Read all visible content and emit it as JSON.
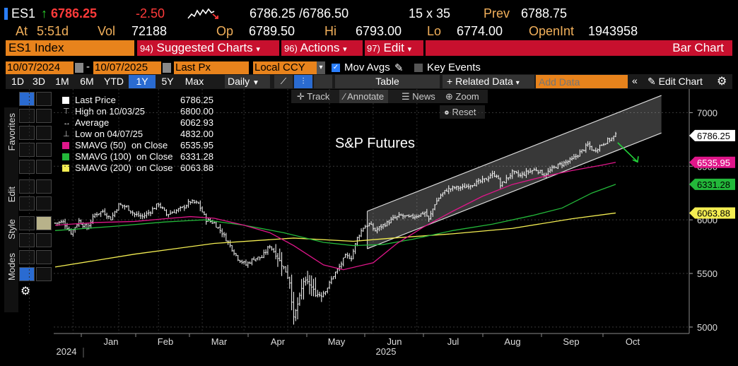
{
  "quote": {
    "ticker": "ES1",
    "arrow": "↑",
    "last": "6786.25",
    "change": "-2.50",
    "bidask": "6786.25 /6786.50",
    "size": "15 x 35",
    "prev_label": "Prev",
    "prev": "6788.75",
    "at_label": "At",
    "at": "5:51d",
    "vol_label": "Vol",
    "vol": "72188",
    "op_label": "Op",
    "op": "6789.50",
    "hi_label": "Hi",
    "hi": "6793.00",
    "lo_label": "Lo",
    "lo": "6774.00",
    "oi_label": "OpenInt",
    "oi": "1943958"
  },
  "menubar": {
    "security": "ES1 Index",
    "suggested_num": "94)",
    "suggested": "Suggested Charts",
    "actions_num": "96)",
    "actions": "Actions",
    "edit_num": "97)",
    "edit": "Edit",
    "chart_type": "Bar Chart"
  },
  "settings": {
    "start_date": "10/07/2024",
    "end_date": "10/07/2025",
    "field": "Last Px",
    "currency": "Local CCY",
    "mov_avgs": "Mov Avgs",
    "key_events": "Key Events"
  },
  "toolbar": {
    "periods": [
      "1D",
      "3D",
      "1M",
      "6M",
      "YTD",
      "1Y",
      "5Y",
      "Max"
    ],
    "active_period": "1Y",
    "frequency": "Daily",
    "table": "Table",
    "related_data": "Related Data",
    "add_data_placeholder": "Add Data",
    "edit_chart": "Edit Chart"
  },
  "chart_tools": {
    "track": "Track",
    "annotate": "Annotate",
    "news": "News",
    "zoom": "Zoom",
    "reset": "Reset"
  },
  "side_tabs": {
    "favorites": "Favorites",
    "edit": "Edit",
    "style": "Style",
    "modes": "Modes"
  },
  "legend": [
    {
      "label": "Last Price",
      "value": "6786.25",
      "color": "#ffffff",
      "type": "box"
    },
    {
      "label": "High on 10/03/25",
      "value": "6800.00",
      "color": "#cccccc",
      "type": "high"
    },
    {
      "label": "Average",
      "value": "6062.93",
      "color": "#cccccc",
      "type": "avg"
    },
    {
      "label": "Low on 04/07/25",
      "value": "4832.00",
      "color": "#cccccc",
      "type": "low"
    },
    {
      "label": "SMAVG (50)  on Close",
      "value": "6535.95",
      "color": "#e0168a",
      "type": "box"
    },
    {
      "label": "SMAVG (100)  on Close",
      "value": "6331.28",
      "color": "#23b83a",
      "type": "box"
    },
    {
      "label": "SMAVG (200)  on Close",
      "value": "6063.88",
      "color": "#f4ee52",
      "type": "box"
    }
  ],
  "annotation": "S&P Futures",
  "chart_data": {
    "type": "bar",
    "ylim": [
      4940,
      7220
    ],
    "yticks": [
      5000,
      5500,
      6000,
      6500,
      7000
    ],
    "months": [
      "Jan",
      "Feb",
      "Mar",
      "Apr",
      "May",
      "Jun",
      "Jul",
      "Aug",
      "Sep",
      "Oct"
    ],
    "years": [
      "2024",
      "2025"
    ],
    "price_labels": [
      {
        "text": "6786.25",
        "value": 6786.25,
        "bg": "#ffffff",
        "fg": "#000000"
      },
      {
        "text": "6535.95",
        "value": 6535.95,
        "bg": "#e0168a",
        "fg": "#ffffff"
      },
      {
        "text": "6331.28",
        "value": 6331.28,
        "bg": "#23b83a",
        "fg": "#000000"
      },
      {
        "text": "6063.88",
        "value": 6063.88,
        "bg": "#f4ee52",
        "fg": "#000000"
      }
    ],
    "close_anchors": [
      [
        0,
        5970
      ],
      [
        4,
        5980
      ],
      [
        8,
        5880
      ],
      [
        12,
        5990
      ],
      [
        16,
        5920
      ],
      [
        20,
        6050
      ],
      [
        24,
        6080
      ],
      [
        28,
        6010
      ],
      [
        32,
        6140
      ],
      [
        36,
        6120
      ],
      [
        40,
        6050
      ],
      [
        44,
        6030
      ],
      [
        48,
        6080
      ],
      [
        52,
        6150
      ],
      [
        56,
        6050
      ],
      [
        60,
        6080
      ],
      [
        64,
        6110
      ],
      [
        68,
        6170
      ],
      [
        72,
        6150
      ],
      [
        76,
        6000
      ],
      [
        80,
        5970
      ],
      [
        84,
        5880
      ],
      [
        88,
        5760
      ],
      [
        92,
        5640
      ],
      [
        96,
        5580
      ],
      [
        100,
        5640
      ],
      [
        104,
        5650
      ],
      [
        108,
        5760
      ],
      [
        112,
        5650
      ],
      [
        116,
        5520
      ],
      [
        118,
        5420
      ],
      [
        120,
        5080
      ],
      [
        123,
        5280
      ],
      [
        125,
        5430
      ],
      [
        128,
        5400
      ],
      [
        131,
        5310
      ],
      [
        134,
        5300
      ],
      [
        137,
        5370
      ],
      [
        140,
        5480
      ],
      [
        143,
        5560
      ],
      [
        146,
        5660
      ],
      [
        149,
        5650
      ],
      [
        152,
        5830
      ],
      [
        155,
        5930
      ],
      [
        158,
        5960
      ],
      [
        161,
        5900
      ],
      [
        164,
        5940
      ],
      [
        167,
        5970
      ],
      [
        170,
        6010
      ],
      [
        174,
        6040
      ],
      [
        178,
        6020
      ],
      [
        182,
        6040
      ],
      [
        186,
        6070
      ],
      [
        188,
        6000
      ],
      [
        191,
        6150
      ],
      [
        194,
        6230
      ],
      [
        197,
        6280
      ],
      [
        201,
        6300
      ],
      [
        205,
        6300
      ],
      [
        209,
        6330
      ],
      [
        213,
        6350
      ],
      [
        217,
        6380
      ],
      [
        219,
        6420
      ],
      [
        222,
        6420
      ],
      [
        224,
        6320
      ],
      [
        227,
        6380
      ],
      [
        230,
        6440
      ],
      [
        234,
        6410
      ],
      [
        238,
        6450
      ],
      [
        242,
        6470
      ],
      [
        246,
        6420
      ],
      [
        249,
        6460
      ],
      [
        252,
        6500
      ],
      [
        256,
        6530
      ],
      [
        260,
        6560
      ],
      [
        263,
        6610
      ],
      [
        266,
        6660
      ],
      [
        268,
        6700
      ],
      [
        271,
        6640
      ],
      [
        274,
        6690
      ],
      [
        277,
        6730
      ],
      [
        280,
        6760
      ],
      [
        282,
        6786
      ]
    ],
    "sma50": [
      [
        0,
        5950
      ],
      [
        20,
        5975
      ],
      [
        40,
        5985
      ],
      [
        55,
        6010
      ],
      [
        68,
        6030
      ],
      [
        80,
        6015
      ],
      [
        95,
        5950
      ],
      [
        108,
        5880
      ],
      [
        120,
        5760
      ],
      [
        135,
        5580
      ],
      [
        145,
        5535
      ],
      [
        160,
        5600
      ],
      [
        172,
        5780
      ],
      [
        185,
        5930
      ],
      [
        200,
        6080
      ],
      [
        215,
        6220
      ],
      [
        230,
        6330
      ],
      [
        245,
        6400
      ],
      [
        260,
        6460
      ],
      [
        275,
        6510
      ],
      [
        282,
        6536
      ]
    ],
    "sma100": [
      [
        0,
        5900
      ],
      [
        30,
        5940
      ],
      [
        55,
        5980
      ],
      [
        75,
        6000
      ],
      [
        95,
        5950
      ],
      [
        115,
        5880
      ],
      [
        135,
        5790
      ],
      [
        150,
        5760
      ],
      [
        165,
        5770
      ],
      [
        180,
        5820
      ],
      [
        200,
        5900
      ],
      [
        220,
        5960
      ],
      [
        240,
        6040
      ],
      [
        255,
        6110
      ],
      [
        270,
        6250
      ],
      [
        282,
        6331
      ]
    ],
    "sma200": [
      [
        0,
        5560
      ],
      [
        40,
        5680
      ],
      [
        80,
        5780
      ],
      [
        120,
        5830
      ],
      [
        150,
        5800
      ],
      [
        170,
        5830
      ],
      [
        200,
        5870
      ],
      [
        230,
        5920
      ],
      [
        260,
        6010
      ],
      [
        282,
        6064
      ]
    ],
    "channel": {
      "upper": [
        [
          157,
          6080
        ],
        [
          305,
          7160
        ]
      ],
      "lower": [
        [
          157,
          5730
        ],
        [
          305,
          6810
        ]
      ]
    },
    "forecast_arrow": [
      [
        283,
        6720
      ],
      [
        293,
        6540
      ]
    ]
  }
}
